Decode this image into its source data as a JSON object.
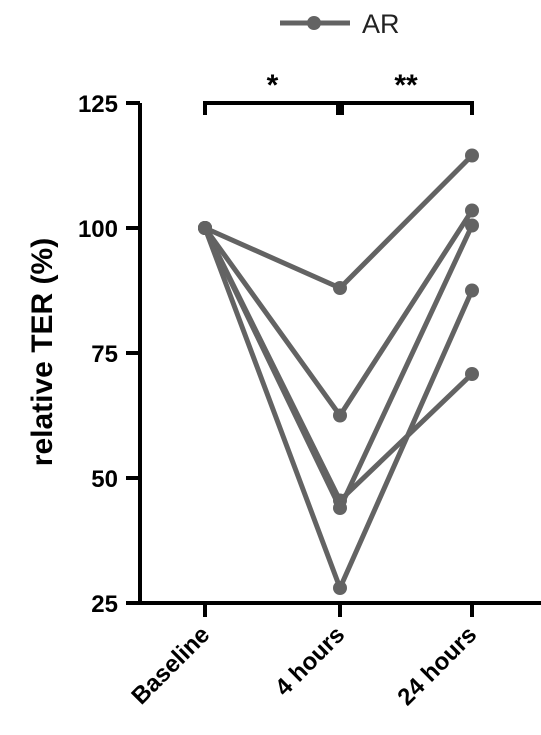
{
  "chart_data": {
    "type": "line",
    "ylabel": "relative TER (%)",
    "ylim": [
      25,
      125
    ],
    "yticks": [
      25,
      50,
      75,
      100,
      125
    ],
    "categories": [
      "Baseline",
      "4 hours",
      "24 hours"
    ],
    "series_color": "#636363",
    "legend": {
      "label": "AR",
      "position": "top-center"
    },
    "subjects": [
      {
        "values": [
          100,
          88,
          114.5
        ]
      },
      {
        "values": [
          100,
          62.5,
          103.5
        ]
      },
      {
        "values": [
          100,
          45.5,
          70.8
        ]
      },
      {
        "values": [
          100,
          44,
          100.5
        ]
      },
      {
        "values": [
          100,
          28,
          87.5
        ]
      }
    ],
    "significance": [
      {
        "from": 0,
        "to": 1,
        "label": "*"
      },
      {
        "from": 1,
        "to": 2,
        "label": "**"
      }
    ]
  }
}
